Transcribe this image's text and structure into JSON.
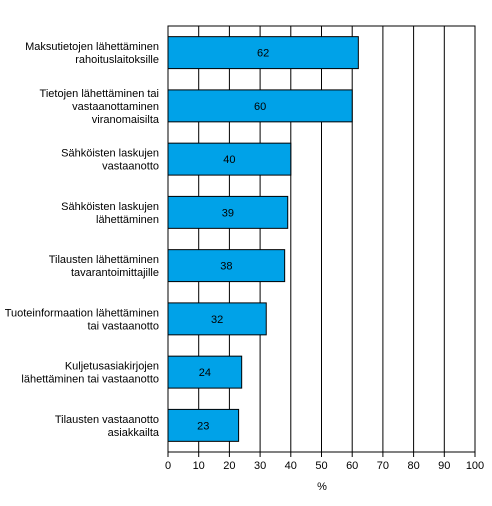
{
  "chart_data": {
    "type": "bar",
    "orientation": "horizontal",
    "categories": [
      [
        "Maksutietojen lähettäminen",
        "rahoituslaitoksille"
      ],
      [
        "Tietojen lähettäminen tai",
        "vastaanottaminen",
        "viranomaisilta"
      ],
      [
        "Sähköisten laskujen",
        "vastaanotto"
      ],
      [
        "Sähköisten laskujen",
        "lähettäminen"
      ],
      [
        "Tilausten lähettäminen",
        "tavarantoimittajille"
      ],
      [
        "Tuoteinformaation lähettäminen",
        "tai vastaanotto"
      ],
      [
        "Kuljetusasiakirjojen",
        "lähettäminen tai vastaanotto"
      ],
      [
        "Tilausten vastaanotto",
        "asiakkailta"
      ]
    ],
    "values": [
      62,
      60,
      40,
      39,
      38,
      32,
      24,
      23
    ],
    "data_labels": [
      "62",
      "60",
      "40",
      "39",
      "38",
      "32",
      "24",
      "23"
    ],
    "xlabel": "%",
    "xlim": [
      0,
      100
    ],
    "xticks": [
      "0",
      "10",
      "20",
      "30",
      "40",
      "50",
      "60",
      "70",
      "80",
      "90",
      "100"
    ],
    "grid": "vertical",
    "legend": "none",
    "colors": {
      "bar_fill": "#00a2e8",
      "bar_stroke": "#000000",
      "grid": "#000000",
      "text": "#000000",
      "background": "#ffffff"
    }
  }
}
